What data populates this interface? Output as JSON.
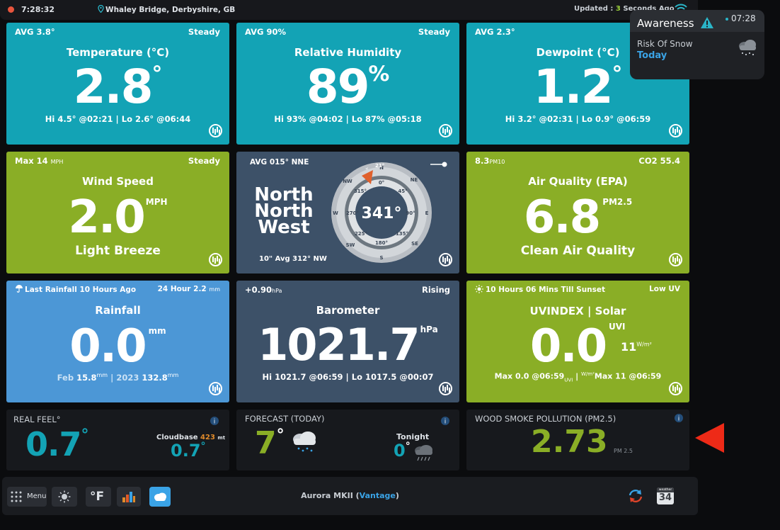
{
  "topbar": {
    "time": "7:28:32",
    "location": "Whaley Bridge, Derbyshire, GB",
    "updated_prefix": "Updated : ",
    "updated_count": "3",
    "updated_suffix": " Seconds Ago"
  },
  "awareness": {
    "title": "Awareness",
    "time": "07:28",
    "risk": "Risk Of Snow",
    "when": "Today"
  },
  "temperature": {
    "avg": "AVG 3.8°",
    "trend": "Steady",
    "title": "Temperature (°C)",
    "value": "2.8",
    "unit": "°",
    "hilo": "Hi 4.5° @02:21 | Lo 2.6° @06:44"
  },
  "humidity": {
    "avg": "AVG 90%",
    "trend": "Steady",
    "title": "Relative Humidity",
    "value": "89",
    "unit": "%",
    "hilo": "Hi 93% @04:02 | Lo 87% @05:18"
  },
  "dewpoint": {
    "avg": "AVG 2.3°",
    "title": "Dewpoint (°C)",
    "value": "1.2",
    "unit": "°",
    "hilo": "Hi 3.2° @02:31 | Lo 0.9° @06:59"
  },
  "wind": {
    "max": "Max 14",
    "max_unit": "MPH",
    "trend": "Steady",
    "title": "Wind Speed",
    "value": "2.0",
    "unit": "MPH",
    "desc": "Light Breeze"
  },
  "compass": {
    "avg": "AVG 015° NNE",
    "words": [
      "North",
      "North",
      "West"
    ],
    "degrees": "341°",
    "avg10": "10\" Avg 312° NW",
    "gust_label": "21°",
    "cardinals": [
      "N",
      "NE",
      "E",
      "SE",
      "S",
      "SW",
      "W",
      "NW"
    ],
    "ring_degrees": [
      "0°",
      "45°",
      "90°",
      "135°",
      "180°",
      "225°",
      "270°",
      "315°"
    ]
  },
  "air": {
    "pm10": "8.3",
    "pm10_unit": "PM10",
    "co2": "CO2 55.4",
    "title": "Air Quality (EPA)",
    "value": "6.8",
    "unit": "PM2.5",
    "desc": "Clean Air Quality"
  },
  "rain": {
    "last": "Last Rainfall 10 Hours Ago",
    "h24": "24 Hour 2.2",
    "h24_unit": "mm",
    "title": "Rainfall",
    "value": "0.0",
    "unit": "mm",
    "feb_label": "Feb",
    "feb_value": "15.8",
    "year_label": "2023",
    "year_value": "132.8",
    "small_unit": "mm"
  },
  "barometer": {
    "delta": "+0.90",
    "delta_unit": "hPa",
    "trend": "Rising",
    "title": "Barometer",
    "value": "1021.7",
    "unit": "hPa",
    "hilo": "Hi 1021.7 @06:59 | Lo 1017.5 @00:07"
  },
  "uv": {
    "sunset": "10 Hours 06 Mins Till Sunset",
    "level": "Low UV",
    "title": "UVINDEX | Solar",
    "value": "0.0",
    "unit": "UVI",
    "solar": "11",
    "solar_unit": "W/m²",
    "max_uv": "Max 0.0 @06:59",
    "max_uv_unit": "UVI",
    "max_solar": "Max 11 @06:59",
    "max_solar_unit": "W/m²"
  },
  "realfeel": {
    "title": "REAL FEEL°",
    "value": "0.7",
    "unit": "°",
    "cloudbase_label": "Cloudbase",
    "cloudbase_value": "423",
    "cloudbase_unit": "mt",
    "value2": "0.7",
    "unit2": "°"
  },
  "forecast": {
    "title": "FORECAST (TODAY)",
    "temp": "7",
    "unit": "°",
    "tonight_label": "Tonight",
    "tonight_temp": "0",
    "tonight_unit": "°"
  },
  "smoke": {
    "title": "WOOD SMOKE POLLUTION (PM2.5)",
    "value": "2.73",
    "unit": "PM 2.5"
  },
  "bottombar": {
    "menu": "Menu",
    "temp_unit": "°F",
    "station_prefix": "Aurora MKII (",
    "station_name": "Vantage",
    "station_suffix": ")",
    "calendar_month": "weather",
    "calendar_day": "34"
  },
  "colors": {
    "teal": "#13a3b5",
    "green": "#8aae26",
    "blue": "#4c97d6",
    "slate": "#3d5168",
    "accent_blue": "#3aa3e6",
    "alert_red": "#ee2a17"
  }
}
